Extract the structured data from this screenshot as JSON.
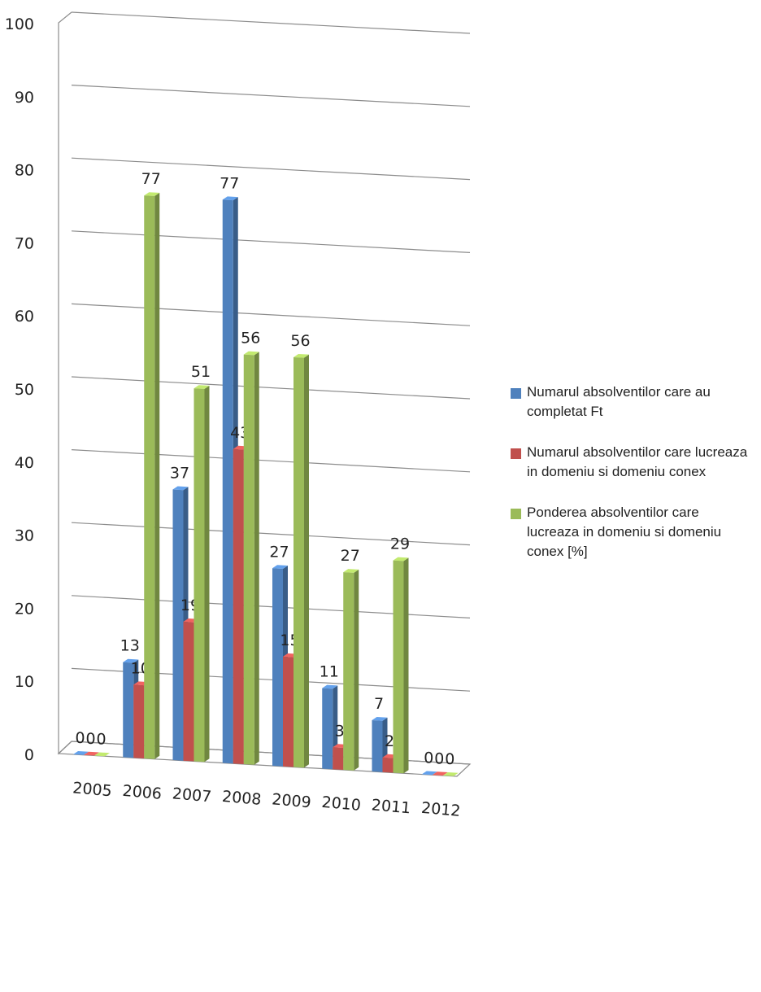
{
  "chart_data": {
    "type": "bar",
    "title": "",
    "xlabel": "",
    "ylabel": "",
    "ylim": [
      0,
      100
    ],
    "yticks": [
      "0",
      "10",
      "20",
      "30",
      "40",
      "50",
      "60",
      "70",
      "80",
      "90",
      "100"
    ],
    "grid": true,
    "legend_position": "right",
    "categories": [
      "2005",
      "2006",
      "2007",
      "2008",
      "2009",
      "2010",
      "2011",
      "2012"
    ],
    "series": [
      {
        "name": "Numarul absolventilor care au completat Ft",
        "color": "#4f81bd",
        "values": [
          0,
          13,
          37,
          77,
          27,
          11,
          7,
          0
        ],
        "labels": [
          "0",
          "13",
          "37",
          "77",
          "27",
          "11",
          "7",
          "0"
        ]
      },
      {
        "name": "Numarul absolventilor care lucreaza in domeniu si domeniu conex",
        "color": "#c0504d",
        "values": [
          0,
          10,
          19,
          43,
          15,
          3,
          2,
          0
        ],
        "labels": [
          "0",
          "10",
          "19",
          "43",
          "15",
          "3",
          "2",
          "0"
        ]
      },
      {
        "name": "Ponderea absolventilor care lucreaza in domeniu si domeniu conex [%]",
        "color": "#9bbb59",
        "values": [
          0,
          77,
          51,
          56,
          56,
          27,
          29,
          0
        ],
        "labels": [
          "0",
          "77",
          "51",
          "56",
          "56",
          "27",
          "29",
          "0"
        ]
      }
    ]
  },
  "legend": {
    "items": [
      {
        "label": "Numarul absolventilor care au completat Ft",
        "color": "#4f81bd"
      },
      {
        "label": "Numarul absolventilor care lucreaza in domeniu si domeniu conex",
        "color": "#c0504d"
      },
      {
        "label": "Ponderea absolventilor care lucreaza in domeniu si domeniu conex [%]",
        "color": "#9bbb59"
      }
    ]
  }
}
